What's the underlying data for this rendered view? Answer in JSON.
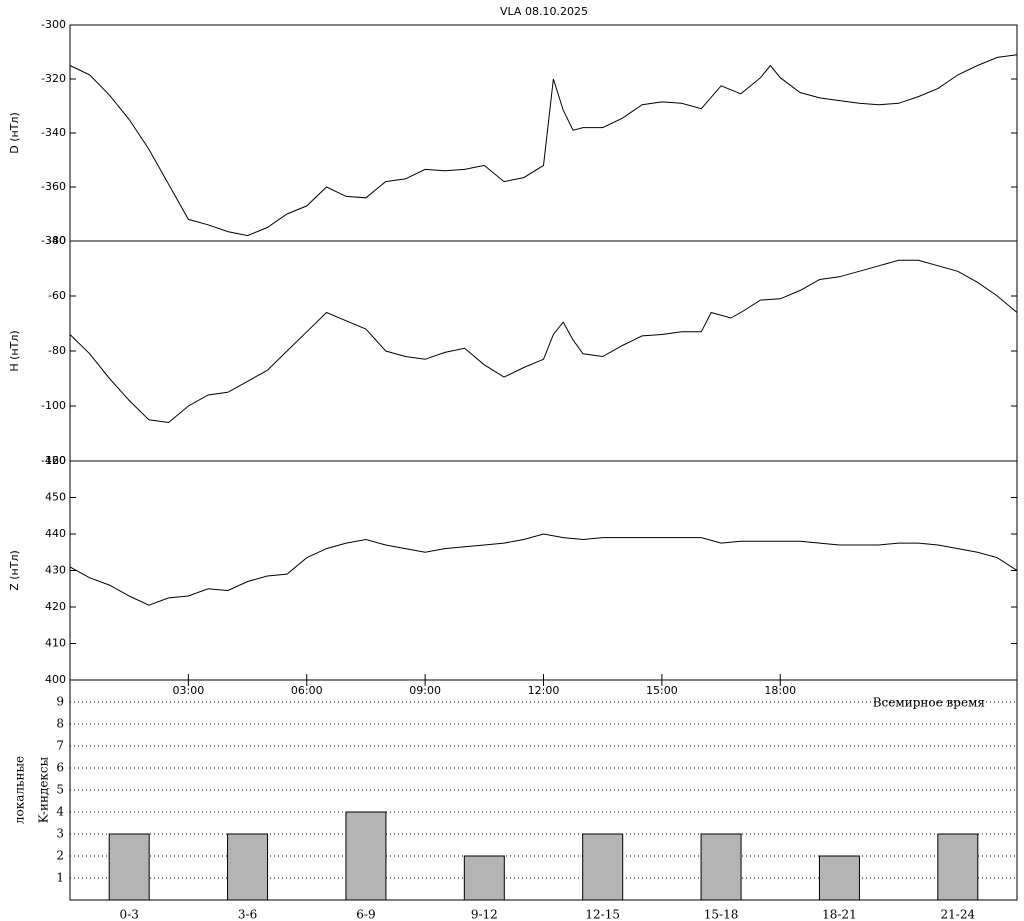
{
  "chart_data": [
    {
      "type": "line",
      "title": "VLA   08.10.2025",
      "ylabel": "D (нТл)",
      "xlim": [
        0,
        24
      ],
      "ylim": [
        -380,
        -300
      ],
      "yticks": [
        -380,
        -360,
        -340,
        -320,
        -300
      ],
      "color": "#000000",
      "x": [
        0,
        0.5,
        1,
        1.5,
        2,
        2.5,
        3,
        3.5,
        4,
        4.5,
        5,
        5.5,
        6,
        6.5,
        7,
        7.5,
        8,
        8.5,
        9,
        9.5,
        10,
        10.5,
        11,
        11.5,
        12,
        12.25,
        12.5,
        12.75,
        13,
        13.5,
        14,
        14.5,
        15,
        15.5,
        16,
        16.5,
        17,
        17.5,
        17.75,
        18,
        18.5,
        19,
        19.5,
        20,
        20.5,
        21,
        21.5,
        22,
        22.5,
        23,
        23.5,
        24
      ],
      "values": [
        -315,
        -318.5,
        -326,
        -335,
        -346,
        -359,
        -372,
        -374,
        -376.5,
        -378,
        -375,
        -370,
        -367,
        -360,
        -363.5,
        -364,
        -358,
        -357,
        -353.5,
        -354,
        -353.5,
        -352,
        -358,
        -356.5,
        -352,
        -320,
        -331.5,
        -339,
        -338,
        -338,
        -334.5,
        -329.5,
        -328.5,
        -329,
        -331,
        -322.5,
        -325.5,
        -319.5,
        -315,
        -319.5,
        -325,
        -327,
        -328,
        -329,
        -329.5,
        -329,
        -326.5,
        -323.5,
        -318.5,
        -315,
        -312,
        -311
      ]
    },
    {
      "type": "line",
      "ylabel": "H (нТл)",
      "xlim": [
        0,
        24
      ],
      "ylim": [
        -120,
        -40
      ],
      "yticks": [
        -120,
        -100,
        -80,
        -60,
        -40
      ],
      "color": "#000000",
      "x": [
        0,
        0.5,
        1,
        1.5,
        2,
        2.5,
        3,
        3.5,
        4,
        4.5,
        5,
        5.5,
        6,
        6.5,
        7,
        7.5,
        8,
        8.5,
        9,
        9.5,
        10,
        10.5,
        11,
        11.5,
        12,
        12.25,
        12.5,
        12.75,
        13,
        13.5,
        14,
        14.5,
        15,
        15.5,
        16,
        16.25,
        16.75,
        17,
        17.5,
        18,
        18.5,
        19,
        19.5,
        20,
        20.5,
        21,
        21.5,
        22,
        22.5,
        23,
        23.5,
        24
      ],
      "values": [
        -74,
        -81,
        -90,
        -98,
        -105,
        -106,
        -100,
        -96,
        -95,
        -91,
        -87,
        -80,
        -73,
        -66,
        -69,
        -72,
        -80,
        -82,
        -83,
        -80.5,
        -79,
        -85,
        -89.5,
        -86,
        -83,
        -74,
        -69.5,
        -76,
        -81,
        -82,
        -78,
        -74.5,
        -74,
        -73,
        -73,
        -66,
        -68,
        -66,
        -61.5,
        -61,
        -58,
        -54,
        -53,
        -51,
        -49,
        -47,
        -47,
        -49,
        -51,
        -55,
        -60,
        -66
      ]
    },
    {
      "type": "line",
      "ylabel": "Z (нТл)",
      "xlabel": "Всемирное время",
      "xlim": [
        0,
        24
      ],
      "ylim": [
        400,
        460
      ],
      "yticks": [
        400,
        410,
        420,
        430,
        440,
        450,
        460
      ],
      "xticks": [
        {
          "value": 3,
          "label": "03:00"
        },
        {
          "value": 6,
          "label": "06:00"
        },
        {
          "value": 9,
          "label": "09:00"
        },
        {
          "value": 12,
          "label": "12:00"
        },
        {
          "value": 15,
          "label": "15:00"
        },
        {
          "value": 18,
          "label": "18:00"
        }
      ],
      "color": "#000000",
      "x": [
        0,
        0.5,
        1,
        1.5,
        2,
        2.5,
        3,
        3.5,
        4,
        4.5,
        5,
        5.5,
        6,
        6.5,
        7,
        7.5,
        8,
        8.5,
        9,
        9.5,
        10,
        10.5,
        11,
        11.5,
        12,
        12.5,
        13,
        13.5,
        14,
        14.5,
        15,
        15.5,
        16,
        16.5,
        17,
        17.5,
        18,
        18.5,
        19,
        19.5,
        20,
        20.5,
        21,
        21.5,
        22,
        22.5,
        23,
        23.5,
        24
      ],
      "values": [
        431,
        428,
        426,
        423,
        420.5,
        422.5,
        423,
        425,
        424.5,
        427,
        428.5,
        429,
        433.5,
        436,
        437.5,
        438.5,
        437,
        436,
        435,
        436,
        436.5,
        437,
        437.5,
        438.5,
        440,
        439,
        438.5,
        439,
        439,
        439,
        439,
        439,
        439,
        437.5,
        438,
        438,
        438,
        438,
        437.5,
        437,
        437,
        437,
        437.5,
        437.5,
        437,
        436,
        435,
        433.5,
        430
      ]
    },
    {
      "type": "bar",
      "ylabel": [
        "локальные",
        "K-индексы"
      ],
      "categories": [
        "0-3",
        "3-6",
        "6-9",
        "9-12",
        "12-15",
        "15-18",
        "18-21",
        "21-24"
      ],
      "values": [
        3,
        3,
        4,
        2,
        3,
        3,
        2,
        3
      ],
      "color": "#b4b4b4",
      "ylim": [
        0,
        10
      ],
      "yticks": [
        1,
        2,
        3,
        4,
        5,
        6,
        7,
        8,
        9
      ],
      "grid": true
    }
  ]
}
